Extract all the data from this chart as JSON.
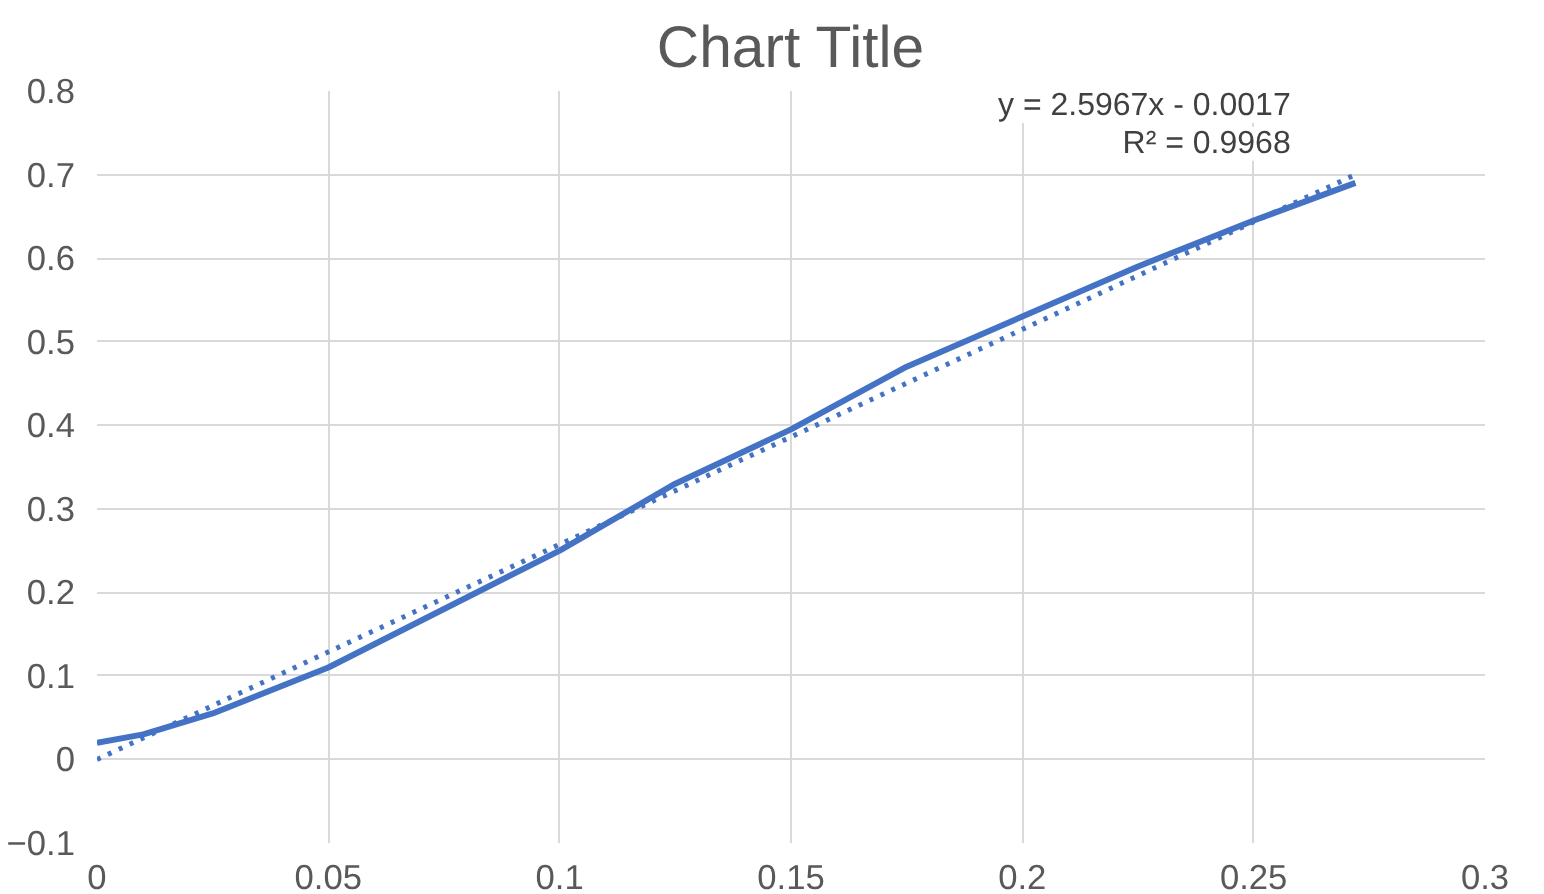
{
  "chart_data": {
    "type": "line",
    "title": "Chart Title",
    "x": [
      0,
      0.01,
      0.025,
      0.05,
      0.075,
      0.1,
      0.125,
      0.15,
      0.175,
      0.2,
      0.225,
      0.25,
      0.272
    ],
    "series": [
      {
        "color": "#4472c4",
        "values": [
          0.02,
          0.03,
          0.055,
          0.11,
          0.18,
          0.25,
          0.33,
          0.395,
          0.47,
          0.53,
          0.59,
          0.645,
          0.69
        ]
      },
      {
        "type": "line",
        "color": "#4472c4",
        "line_style": "dotted",
        "x": [
          0,
          0.272
        ],
        "values": [
          0.0,
          0.7
        ]
      }
    ],
    "annotations": [
      "y = 2.5967x - 0.0017",
      "R² = 0.9968"
    ],
    "xlim": [
      0,
      0.3
    ],
    "xticks": [
      0,
      0.05,
      0.1,
      0.15,
      0.2,
      0.25,
      0.3
    ],
    "ylim": [
      -0.1,
      0.8
    ],
    "yticks": [
      -0.1,
      0,
      0.1,
      0.2,
      0.3,
      0.4,
      0.5,
      0.6,
      0.7,
      0.8
    ],
    "grid": true,
    "marker": "none",
    "line_style": "solid"
  }
}
